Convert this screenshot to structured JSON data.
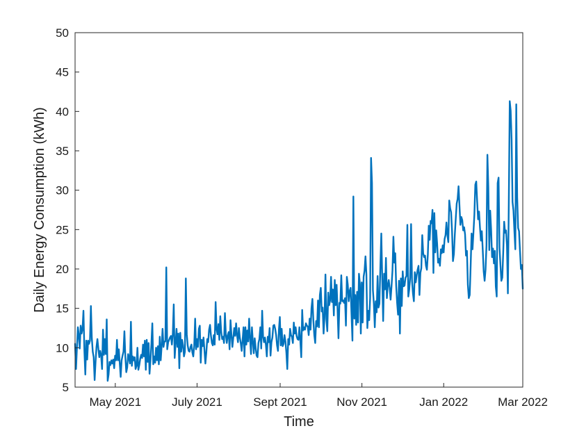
{
  "chart_data": {
    "type": "line",
    "title": "",
    "xlabel": "Time",
    "ylabel": "Daily Energy Consumption (kWh)",
    "x_start": "2021-04-01",
    "x_end": "2022-03-01",
    "xlim": [
      "2021-04-01",
      "2022-03-01"
    ],
    "ylim": [
      5,
      50
    ],
    "yticks": [
      5,
      10,
      15,
      20,
      25,
      30,
      35,
      40,
      45,
      50
    ],
    "xticks": [
      {
        "date": "2021-05-01",
        "label": "May 2021"
      },
      {
        "date": "2021-07-01",
        "label": "July 2021"
      },
      {
        "date": "2021-09-01",
        "label": "Sept 2021"
      },
      {
        "date": "2021-11-01",
        "label": "Nov 2021"
      },
      {
        "date": "2022-01-01",
        "label": "Jan 2022"
      },
      {
        "date": "2022-03-01",
        "label": "Mar 2022"
      }
    ],
    "grid": false,
    "line_color": "#0072bd",
    "series": [
      {
        "y": [
          10.5,
          7.3,
          10.0,
          12.6,
          11.6,
          9.9,
          12.8,
          11.8,
          12.4,
          14.7,
          9.6,
          6.6,
          10.9,
          8.5,
          10.9,
          10.5,
          10.9,
          15.3,
          11.2,
          9.5,
          8.8,
          5.9,
          8.2,
          10.1,
          11.1,
          9.9,
          8.8,
          9.6,
          9.0,
          7.3,
          12.3,
          9.1,
          11.1,
          9.2,
          13.6,
          5.8,
          6.6,
          8.2,
          7.8,
          8.4,
          8.0,
          8.5,
          7.4,
          9.0,
          8.4,
          11.0,
          8.4,
          9.8,
          8.0,
          6.3,
          8.4,
          9.0,
          9.5,
          12.1,
          8.9,
          6.9,
          7.5,
          9.2,
          8.7,
          8.0,
          13.3,
          7.7,
          8.9,
          8.4,
          8.8,
          7.3,
          7.7,
          10.0,
          7.2,
          7.8,
          8.6,
          9.1,
          8.7,
          10.4,
          8.9,
          10.9,
          7.2,
          11.0,
          8.2,
          10.6,
          6.7,
          8.4,
          10.5,
          13.1,
          7.9,
          8.9,
          8.1,
          10.0,
          8.4,
          10.2,
          7.9,
          11.4,
          8.4,
          10.2,
          12.4,
          10.1,
          10.8,
          10.8,
          20.2,
          9.8,
          10.7,
          11.0,
          11.3,
          11.5,
          10.4,
          11.8,
          15.5,
          8.7,
          10.5,
          12.4,
          10.1,
          11.8,
          7.4,
          11.9,
          9.5,
          11.0,
          10.3,
          8.9,
          9.5,
          18.8,
          11.7,
          10.3,
          9.6,
          9.5,
          10.1,
          10.4,
          9.4,
          8.9,
          10.3,
          13.7,
          9.8,
          11.1,
          10.1,
          12.4,
          12.8,
          8.1,
          11.0,
          10.2,
          11.3,
          9.7,
          8.0,
          9.4,
          11.1,
          10.7,
          12.3,
          12.9,
          11.5,
          10.6,
          10.3,
          11.6,
          10.4,
          15.8,
          12.4,
          11.7,
          13.0,
          11.0,
          14.0,
          12.0,
          11.1,
          11.4,
          10.6,
          14.4,
          11.6,
          10.6,
          11.6,
          12.0,
          9.8,
          13.5,
          11.6,
          10.1,
          11.3,
          12.5,
          11.5,
          13.1,
          11.6,
          10.7,
          12.5,
          11.3,
          10.6,
          9.6,
          11.0,
          12.6,
          8.9,
          12.6,
          10.4,
          12.2,
          10.8,
          13.7,
          11.2,
          9.2,
          12.6,
          10.8,
          9.3,
          11.2,
          10.0,
          9.0,
          8.8,
          10.6,
          11.1,
          12.6,
          9.9,
          14.7,
          11.4,
          10.7,
          11.3,
          10.4,
          8.9,
          11.4,
          10.7,
          12.5,
          9.0,
          10.7,
          11.3,
          12.8,
          12.9,
          12.4,
          11.6,
          10.3,
          9.6,
          12.3,
          13.9,
          10.3,
          12.4,
          10.2,
          10.5,
          11.6,
          10.8,
          9.4,
          7.3,
          11.1,
          10.4,
          12.4,
          11.6,
          11.4,
          10.6,
          13.2,
          11.8,
          12.6,
          11.5,
          11.1,
          11.0,
          12.6,
          10.9,
          8.8,
          14.8,
          12.2,
          12.6,
          12.3,
          13.1,
          12.8,
          12.7,
          11.6,
          13.7,
          12.3,
          15.0,
          16.2,
          13.5,
          11.6,
          10.6,
          13.4,
          12.7,
          16.0,
          12.6,
          16.7,
          17.6,
          14.6,
          15.1,
          11.8,
          13.9,
          19.3,
          13.6,
          12.1,
          17.0,
          15.4,
          16.0,
          19.0,
          15.8,
          17.4,
          14.1,
          18.6,
          15.4,
          18.0,
          14.9,
          11.2,
          15.7,
          15.6,
          19.2,
          15.9,
          16.0,
          15.7,
          16.3,
          12.8,
          19.0,
          18.0,
          15.9,
          17.2,
          17.6,
          14.2,
          10.9,
          29.2,
          13.7,
          16.7,
          12.9,
          17.1,
          13.2,
          19.4,
          18.1,
          11.8,
          18.3,
          13.2,
          19.0,
          19.8,
          21.6,
          19.3,
          12.5,
          14.7,
          13.5,
          16.3,
          34.1,
          30.9,
          17.3,
          15.6,
          12.6,
          15.9,
          14.5,
          19.1,
          15.1,
          15.6,
          20.3,
          24.5,
          18.8,
          13.4,
          19.4,
          17.4,
          21.4,
          16.3,
          17.9,
          18.6,
          17.6,
          16.1,
          17.8,
          19.8,
          24.1,
          20.8,
          22.0,
          17.8,
          15.7,
          14.2,
          18.5,
          11.8,
          18.8,
          15.3,
          19.7,
          17.8,
          17.9,
          18.9,
          19.1,
          25.6,
          16.5,
          17.4,
          18.9,
          25.7,
          18.5,
          16.9,
          15.9,
          19.6,
          18.3,
          19.2,
          19.9,
          20.4,
          16.7,
          19.5,
          20.1,
          24.3,
          22.0,
          21.5,
          21.7,
          20.4,
          19.9,
          21.8,
          25.5,
          23.7,
          26.1,
          25.8,
          27.5,
          19.5,
          27.1,
          22.1,
          24.9,
          23.2,
          20.8,
          21.3,
          20.4,
          22.5,
          22.0,
          23.0,
          22.1,
          23.8,
          24.3,
          25.9,
          24.3,
          23.4,
          28.7,
          27.7,
          27.2,
          24.8,
          21.0,
          21.9,
          24.4,
          26.4,
          28.3,
          28.9,
          30.5,
          28.0,
          25.6,
          26.6,
          26.2,
          24.9,
          25.3,
          24.4,
          21.7,
          22.3,
          18.0,
          16.3,
          16.7,
          20.4,
          24.5,
          22.5,
          24.6,
          26.9,
          30.7,
          31.1,
          28.5,
          26.3,
          27.3,
          25.3,
          23.6,
          24.8,
          22.4,
          19.7,
          18.5,
          19.9,
          23.0,
          34.5,
          30.4,
          22.4,
          27.4,
          25.0,
          21.5,
          22.6,
          20.7,
          22.3,
          17.8,
          16.5,
          30.9,
          31.6,
          22.7,
          20.5,
          18.5,
          18.9,
          22.1,
          26.0,
          24.6,
          24.9,
          23.0,
          16.9,
          28.6,
          41.3,
          40.1,
          36.4,
          28.5,
          27.4,
          24.8,
          22.5,
          40.9,
          29.1,
          25.2,
          24.8,
          22.3,
          20.0,
          20.5,
          17.5
        ]
      }
    ]
  }
}
